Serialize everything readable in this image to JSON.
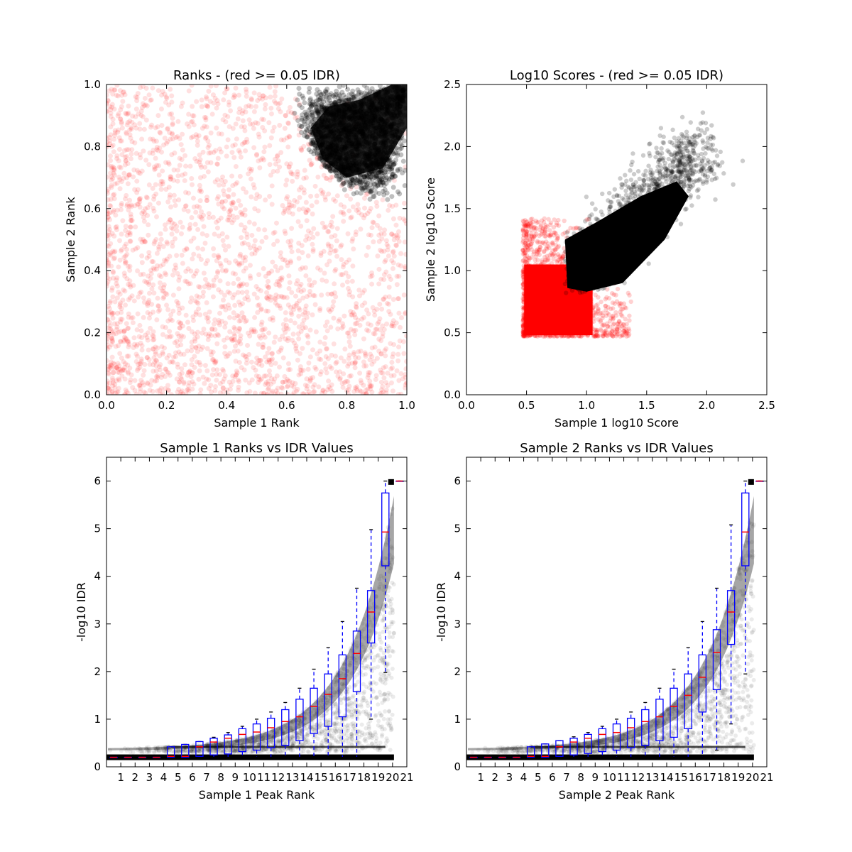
{
  "chart_data": [
    {
      "type": "scatter",
      "title": "Ranks - (red >= 0.05 IDR)",
      "xlabel": "Sample 1 Rank",
      "ylabel": "Sample 2 Rank",
      "xlim": [
        0.0,
        1.0
      ],
      "ylim": [
        0.0,
        1.0
      ],
      "xticks": [
        "0.0",
        "0.2",
        "0.4",
        "0.6",
        "0.8",
        "1.0"
      ],
      "yticks": [
        "0.0",
        "0.2",
        "0.4",
        "0.6",
        "0.8",
        "1.0"
      ],
      "series": [
        {
          "color": "#ff0000",
          "description_region": {
            "x": [
              0.0,
              1.0
            ],
            "y": [
              0.0,
              1.0
            ]
          }
        },
        {
          "color": "#000000",
          "description_region": {
            "x": [
              0.62,
              1.0
            ],
            "y": [
              0.62,
              1.0
            ]
          }
        }
      ]
    },
    {
      "type": "scatter",
      "title": "Log10 Scores - (red >= 0.05 IDR)",
      "xlabel": "Sample 1 log10 Score",
      "ylabel": "Sample 2 log10 Score",
      "xlim": [
        0.0,
        2.5
      ],
      "ylim": [
        0.0,
        2.5
      ],
      "xticks": [
        "0.0",
        "0.5",
        "1.0",
        "1.5",
        "2.0",
        "2.5"
      ],
      "yticks": [
        "0.0",
        "0.5",
        "1.0",
        "1.5",
        "2.0",
        "2.5"
      ],
      "series": [
        {
          "color": "#ff0000",
          "description_region": {
            "x": [
              0.47,
              1.35
            ],
            "y": [
              0.47,
              1.45
            ]
          }
        },
        {
          "color": "#000000",
          "description_region": {
            "x": [
              0.82,
              2.0
            ],
            "y": [
              0.82,
              2.15
            ]
          }
        }
      ]
    },
    {
      "type": "box",
      "title": "Sample 1 Ranks vs IDR Values",
      "xlabel": "Sample 1 Peak Rank",
      "ylabel": "-log10 IDR",
      "xlim": [
        0,
        21
      ],
      "ylim": [
        0,
        6.5
      ],
      "xticks": [
        "1",
        "2",
        "3",
        "4",
        "5",
        "6",
        "7",
        "8",
        "9",
        "10",
        "11",
        "12",
        "13",
        "14",
        "15",
        "16",
        "17",
        "18",
        "19",
        "20",
        "21"
      ],
      "yticks": [
        "0",
        "1",
        "2",
        "3",
        "4",
        "5",
        "6"
      ],
      "boxes": [
        {
          "pos": 1,
          "q1": 0.2,
          "med": 0.2,
          "q3": 0.2,
          "wlo": 0.2,
          "whi": 0.2
        },
        {
          "pos": 2,
          "q1": 0.2,
          "med": 0.2,
          "q3": 0.2,
          "wlo": 0.2,
          "whi": 0.2
        },
        {
          "pos": 3,
          "q1": 0.2,
          "med": 0.2,
          "q3": 0.2,
          "wlo": 0.2,
          "whi": 0.2
        },
        {
          "pos": 4,
          "q1": 0.2,
          "med": 0.2,
          "q3": 0.2,
          "wlo": 0.2,
          "whi": 0.2
        },
        {
          "pos": 5,
          "q1": 0.2,
          "med": 0.22,
          "q3": 0.42,
          "wlo": 0.2,
          "whi": 0.42
        },
        {
          "pos": 6,
          "q1": 0.2,
          "med": 0.22,
          "q3": 0.47,
          "wlo": 0.2,
          "whi": 0.47
        },
        {
          "pos": 7,
          "q1": 0.22,
          "med": 0.42,
          "q3": 0.53,
          "wlo": 0.2,
          "whi": 0.53
        },
        {
          "pos": 8,
          "q1": 0.25,
          "med": 0.52,
          "q3": 0.6,
          "wlo": 0.2,
          "whi": 0.62
        },
        {
          "pos": 9,
          "q1": 0.27,
          "med": 0.6,
          "q3": 0.67,
          "wlo": 0.2,
          "whi": 0.72
        },
        {
          "pos": 10,
          "q1": 0.32,
          "med": 0.68,
          "q3": 0.8,
          "wlo": 0.2,
          "whi": 0.85
        },
        {
          "pos": 11,
          "q1": 0.35,
          "med": 0.73,
          "q3": 0.9,
          "wlo": 0.2,
          "whi": 1.0
        },
        {
          "pos": 12,
          "q1": 0.4,
          "med": 0.82,
          "q3": 1.02,
          "wlo": 0.2,
          "whi": 1.15
        },
        {
          "pos": 13,
          "q1": 0.45,
          "med": 0.95,
          "q3": 1.2,
          "wlo": 0.2,
          "whi": 1.35
        },
        {
          "pos": 14,
          "q1": 0.55,
          "med": 1.05,
          "q3": 1.42,
          "wlo": 0.2,
          "whi": 1.65
        },
        {
          "pos": 15,
          "q1": 0.7,
          "med": 1.27,
          "q3": 1.65,
          "wlo": 0.2,
          "whi": 2.05
        },
        {
          "pos": 16,
          "q1": 0.85,
          "med": 1.52,
          "q3": 1.95,
          "wlo": 0.2,
          "whi": 2.5
        },
        {
          "pos": 17,
          "q1": 1.05,
          "med": 1.85,
          "q3": 2.35,
          "wlo": 0.2,
          "whi": 3.05
        },
        {
          "pos": 18,
          "q1": 1.58,
          "med": 2.38,
          "q3": 2.85,
          "wlo": 0.2,
          "whi": 3.75
        },
        {
          "pos": 19,
          "q1": 2.6,
          "med": 3.25,
          "q3": 3.7,
          "wlo": 1.0,
          "whi": 4.98
        },
        {
          "pos": 20,
          "q1": 4.22,
          "med": 4.93,
          "q3": 5.75,
          "wlo": 1.98,
          "whi": 6.0
        },
        {
          "pos": 21,
          "q1": 6.0,
          "med": 6.0,
          "q3": 6.0,
          "wlo": 6.0,
          "whi": 6.0
        }
      ]
    },
    {
      "type": "box",
      "title": "Sample 2 Ranks vs IDR Values",
      "xlabel": "Sample 2 Peak Rank",
      "ylabel": "-log10 IDR",
      "xlim": [
        0,
        21
      ],
      "ylim": [
        0,
        6.5
      ],
      "xticks": [
        "1",
        "2",
        "3",
        "4",
        "5",
        "6",
        "7",
        "8",
        "9",
        "10",
        "11",
        "12",
        "13",
        "14",
        "15",
        "16",
        "17",
        "18",
        "19",
        "20",
        "21"
      ],
      "yticks": [
        "0",
        "1",
        "2",
        "3",
        "4",
        "5",
        "6"
      ],
      "boxes": [
        {
          "pos": 1,
          "q1": 0.2,
          "med": 0.2,
          "q3": 0.2,
          "wlo": 0.2,
          "whi": 0.2
        },
        {
          "pos": 2,
          "q1": 0.2,
          "med": 0.2,
          "q3": 0.2,
          "wlo": 0.2,
          "whi": 0.2
        },
        {
          "pos": 3,
          "q1": 0.2,
          "med": 0.2,
          "q3": 0.2,
          "wlo": 0.2,
          "whi": 0.2
        },
        {
          "pos": 4,
          "q1": 0.2,
          "med": 0.2,
          "q3": 0.2,
          "wlo": 0.2,
          "whi": 0.2
        },
        {
          "pos": 5,
          "q1": 0.2,
          "med": 0.22,
          "q3": 0.42,
          "wlo": 0.2,
          "whi": 0.42
        },
        {
          "pos": 6,
          "q1": 0.2,
          "med": 0.22,
          "q3": 0.48,
          "wlo": 0.2,
          "whi": 0.48
        },
        {
          "pos": 7,
          "q1": 0.22,
          "med": 0.42,
          "q3": 0.55,
          "wlo": 0.2,
          "whi": 0.55
        },
        {
          "pos": 8,
          "q1": 0.25,
          "med": 0.52,
          "q3": 0.6,
          "wlo": 0.2,
          "whi": 0.63
        },
        {
          "pos": 9,
          "q1": 0.28,
          "med": 0.6,
          "q3": 0.68,
          "wlo": 0.2,
          "whi": 0.72
        },
        {
          "pos": 10,
          "q1": 0.32,
          "med": 0.68,
          "q3": 0.8,
          "wlo": 0.2,
          "whi": 0.85
        },
        {
          "pos": 11,
          "q1": 0.35,
          "med": 0.72,
          "q3": 0.9,
          "wlo": 0.2,
          "whi": 1.0
        },
        {
          "pos": 12,
          "q1": 0.4,
          "med": 0.82,
          "q3": 1.02,
          "wlo": 0.2,
          "whi": 1.15
        },
        {
          "pos": 13,
          "q1": 0.45,
          "med": 0.95,
          "q3": 1.2,
          "wlo": 0.2,
          "whi": 1.35
        },
        {
          "pos": 14,
          "q1": 0.55,
          "med": 1.05,
          "q3": 1.42,
          "wlo": 0.2,
          "whi": 1.65
        },
        {
          "pos": 15,
          "q1": 0.62,
          "med": 1.27,
          "q3": 1.65,
          "wlo": 0.2,
          "whi": 2.05
        },
        {
          "pos": 16,
          "q1": 0.8,
          "med": 1.5,
          "q3": 1.95,
          "wlo": 0.2,
          "whi": 2.5
        },
        {
          "pos": 17,
          "q1": 1.15,
          "med": 1.88,
          "q3": 2.35,
          "wlo": 0.2,
          "whi": 3.05
        },
        {
          "pos": 18,
          "q1": 1.62,
          "med": 2.4,
          "q3": 2.88,
          "wlo": 0.35,
          "whi": 3.75
        },
        {
          "pos": 19,
          "q1": 2.57,
          "med": 3.25,
          "q3": 3.7,
          "wlo": 0.9,
          "whi": 5.08
        },
        {
          "pos": 20,
          "q1": 4.22,
          "med": 4.93,
          "q3": 5.75,
          "wlo": 1.95,
          "whi": 6.0
        },
        {
          "pos": 21,
          "q1": 6.0,
          "med": 6.0,
          "q3": 6.0,
          "wlo": 6.0,
          "whi": 6.0
        }
      ]
    }
  ]
}
